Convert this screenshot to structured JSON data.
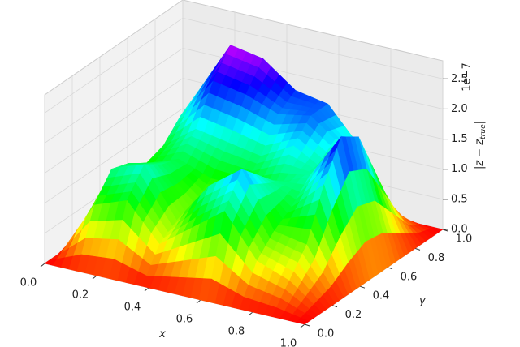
{
  "chart_data": {
    "type": "surface3d",
    "xlabel": "x",
    "ylabel": "y",
    "zlabel": {
      "main": "|z − z",
      "sub": "true",
      "end": "|"
    },
    "z_offset_label": "1e−7",
    "x": [
      0,
      0.125,
      0.25,
      0.375,
      0.5,
      0.625,
      0.75,
      0.875,
      1
    ],
    "y": [
      0,
      0.125,
      0.25,
      0.375,
      0.5,
      0.625,
      0.75,
      0.875,
      1
    ],
    "z": [
      [
        0,
        0,
        0,
        0,
        0,
        0,
        0,
        0,
        0
      ],
      [
        0,
        0.9,
        1.1,
        0.5,
        0.9,
        1.3,
        0.6,
        0.4,
        0
      ],
      [
        0,
        1.3,
        1.5,
        0.7,
        1.4,
        1.8,
        0.9,
        0.8,
        0
      ],
      [
        0,
        1.2,
        1.3,
        0.8,
        1.2,
        1.5,
        1.1,
        1.6,
        0
      ],
      [
        0,
        1.0,
        1.2,
        1.0,
        1.0,
        1.2,
        1.4,
        2.2,
        0
      ],
      [
        0,
        1.1,
        1.5,
        1.4,
        1.3,
        1.6,
        1.3,
        2.0,
        0
      ],
      [
        0,
        1.4,
        2.1,
        2.0,
        1.8,
        1.9,
        1.5,
        1.2,
        0
      ],
      [
        0,
        1.6,
        2.5,
        2.4,
        2.0,
        1.9,
        1.3,
        0.4,
        0
      ],
      [
        0,
        0,
        0,
        0,
        0,
        0,
        0,
        0,
        0
      ]
    ],
    "xlim": [
      0,
      1
    ],
    "ylim": [
      0,
      1
    ],
    "zlim": [
      0,
      2.8
    ],
    "xticks": [
      {
        "value": 0,
        "label": "0.0"
      },
      0.2,
      0.4,
      0.6,
      0.8,
      {
        "value": 1,
        "label": "1.0"
      }
    ],
    "yticks": [
      {
        "value": 0,
        "label": "0.0"
      },
      0.2,
      0.4,
      0.6,
      0.8,
      {
        "value": 1,
        "label": "1.0"
      }
    ],
    "zticks": [
      {
        "value": 0,
        "label": "0.0"
      },
      0.5,
      {
        "value": 1,
        "label": "1.0"
      },
      1.5,
      {
        "value": 2,
        "label": "2.0"
      },
      2.5
    ],
    "grid": true
  }
}
